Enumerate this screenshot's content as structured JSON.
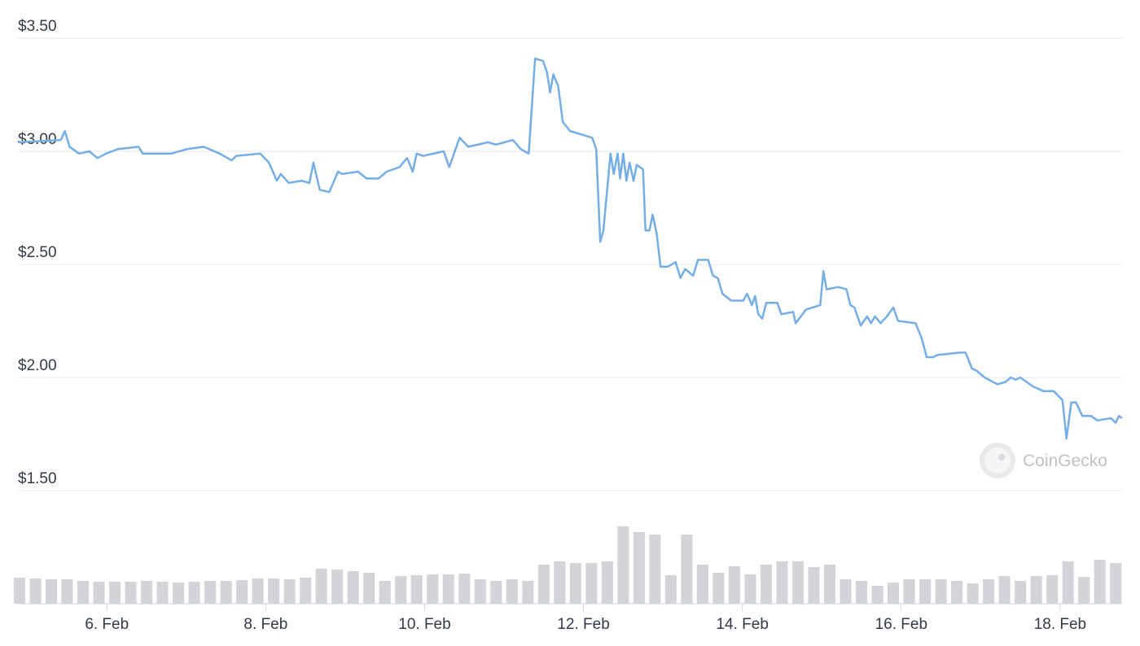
{
  "chart_data": [
    {
      "type": "line",
      "color": "#74aee6",
      "grid": true,
      "watermark": "CoinGecko",
      "xlim": [
        4.88,
        18.78
      ],
      "ylim": [
        1.5,
        3.5
      ],
      "yticks": [
        {
          "value": 1.5,
          "label": "$1.50"
        },
        {
          "value": 2,
          "label": "$2.00"
        },
        {
          "value": 2.5,
          "label": "$2.50"
        },
        {
          "value": 3,
          "label": "$3.00"
        },
        {
          "value": 3.5,
          "label": "$3.50"
        }
      ],
      "x": [
        4.88,
        5.42,
        5.47,
        5.53,
        5.65,
        5.78,
        5.88,
        5.99,
        6.14,
        6.4,
        6.45,
        6.81,
        7.01,
        7.22,
        7.42,
        7.57,
        7.63,
        7.93,
        8.04,
        8.14,
        8.19,
        8.29,
        8.45,
        8.55,
        8.6,
        8.68,
        8.8,
        8.91,
        8.96,
        9.16,
        9.27,
        9.42,
        9.52,
        9.68,
        9.78,
        9.85,
        9.9,
        9.98,
        10.24,
        10.31,
        10.44,
        10.55,
        10.8,
        10.9,
        11.11,
        11.21,
        11.31,
        11.39,
        11.49,
        11.54,
        11.58,
        11.62,
        11.68,
        11.74,
        11.83,
        12.11,
        12.16,
        12.21,
        12.25,
        12.3,
        12.34,
        12.38,
        12.43,
        12.46,
        12.5,
        12.54,
        12.58,
        12.63,
        12.67,
        12.75,
        12.78,
        12.83,
        12.87,
        12.92,
        12.97,
        13.06,
        13.16,
        13.22,
        13.28,
        13.38,
        13.44,
        13.57,
        13.63,
        13.69,
        13.75,
        13.86,
        14.01,
        14.06,
        14.12,
        14.16,
        14.2,
        14.25,
        14.3,
        14.44,
        14.49,
        14.64,
        14.67,
        14.8,
        14.98,
        15.02,
        15.06,
        15.21,
        15.31,
        15.36,
        15.41,
        15.49,
        15.57,
        15.62,
        15.67,
        15.74,
        15.82,
        15.9,
        15.96,
        16.18,
        16.26,
        16.32,
        16.4,
        16.46,
        16.74,
        16.81,
        16.89,
        16.95,
        17.05,
        17.21,
        17.31,
        17.38,
        17.44,
        17.5,
        17.66,
        17.79,
        17.92,
        18.03,
        18.08,
        18.14,
        18.2,
        18.28,
        18.39,
        18.47,
        18.64,
        18.7,
        18.74,
        18.78
      ],
      "values": [
        3.04,
        3.05,
        3.09,
        3.02,
        2.99,
        3.0,
        2.97,
        2.99,
        3.01,
        3.02,
        2.99,
        2.99,
        3.01,
        3.02,
        2.99,
        2.96,
        2.98,
        2.99,
        2.95,
        2.87,
        2.9,
        2.86,
        2.87,
        2.86,
        2.95,
        2.83,
        2.82,
        2.91,
        2.9,
        2.91,
        2.88,
        2.88,
        2.91,
        2.93,
        2.97,
        2.91,
        2.99,
        2.98,
        3.0,
        2.93,
        3.06,
        3.02,
        3.04,
        3.03,
        3.05,
        3.01,
        2.99,
        3.41,
        3.4,
        3.35,
        3.26,
        3.34,
        3.29,
        3.13,
        3.09,
        3.06,
        3.01,
        2.6,
        2.65,
        2.84,
        2.99,
        2.9,
        2.99,
        2.88,
        2.99,
        2.87,
        2.95,
        2.87,
        2.94,
        2.92,
        2.65,
        2.65,
        2.72,
        2.64,
        2.49,
        2.49,
        2.51,
        2.44,
        2.48,
        2.45,
        2.52,
        2.52,
        2.45,
        2.44,
        2.37,
        2.34,
        2.34,
        2.37,
        2.32,
        2.36,
        2.28,
        2.26,
        2.33,
        2.33,
        2.28,
        2.29,
        2.24,
        2.3,
        2.32,
        2.47,
        2.39,
        2.4,
        2.39,
        2.32,
        2.31,
        2.23,
        2.27,
        2.24,
        2.27,
        2.24,
        2.27,
        2.31,
        2.25,
        2.24,
        2.17,
        2.09,
        2.09,
        2.1,
        2.11,
        2.11,
        2.04,
        2.03,
        2.0,
        1.97,
        1.98,
        2.0,
        1.99,
        2.0,
        1.96,
        1.94,
        1.94,
        1.9,
        1.73,
        1.89,
        1.89,
        1.83,
        1.83,
        1.81,
        1.82,
        1.8,
        1.83,
        1.82
      ]
    },
    {
      "type": "bar",
      "color": "#d2d4d8",
      "xlim": [
        4.88,
        18.78
      ],
      "ylim": [
        0,
        100
      ],
      "xticks": [
        {
          "value": 6,
          "label": "6. Feb"
        },
        {
          "value": 8,
          "label": "8. Feb"
        },
        {
          "value": 10,
          "label": "10. Feb"
        },
        {
          "value": 12,
          "label": "12. Feb"
        },
        {
          "value": 14,
          "label": "14. Feb"
        },
        {
          "value": 16,
          "label": "16. Feb"
        },
        {
          "value": 18,
          "label": "18. Feb"
        }
      ],
      "x": [
        4.9,
        5.1,
        5.3,
        5.5,
        5.7,
        5.9,
        6.1,
        6.3,
        6.5,
        6.7,
        6.9,
        7.1,
        7.3,
        7.5,
        7.7,
        7.9,
        8.1,
        8.3,
        8.5,
        8.7,
        8.9,
        9.1,
        9.3,
        9.5,
        9.7,
        9.9,
        10.1,
        10.3,
        10.5,
        10.7,
        10.9,
        11.1,
        11.3,
        11.5,
        11.7,
        11.9,
        12.1,
        12.3,
        12.5,
        12.7,
        12.9,
        13.1,
        13.3,
        13.5,
        13.7,
        13.9,
        14.1,
        14.3,
        14.5,
        14.7,
        14.9,
        15.1,
        15.3,
        15.5,
        15.7,
        15.9,
        16.1,
        16.3,
        16.5,
        16.7,
        16.9,
        17.1,
        17.3,
        17.5,
        17.7,
        17.9,
        18.1,
        18.3,
        18.5,
        18.7
      ],
      "values": [
        32,
        31,
        30,
        30,
        28,
        27,
        27,
        27,
        28,
        27,
        26,
        27,
        28,
        28,
        29,
        31,
        31,
        30,
        32,
        43,
        42,
        40,
        38,
        28,
        34,
        35,
        36,
        36,
        37,
        30,
        28,
        30,
        28,
        48,
        52,
        50,
        50,
        52,
        95,
        88,
        85,
        35,
        85,
        48,
        38,
        46,
        36,
        48,
        52,
        52,
        45,
        48,
        30,
        28,
        22,
        26,
        30,
        30,
        30,
        28,
        25,
        30,
        34,
        28,
        34,
        35,
        52,
        33,
        54,
        50
      ]
    }
  ]
}
